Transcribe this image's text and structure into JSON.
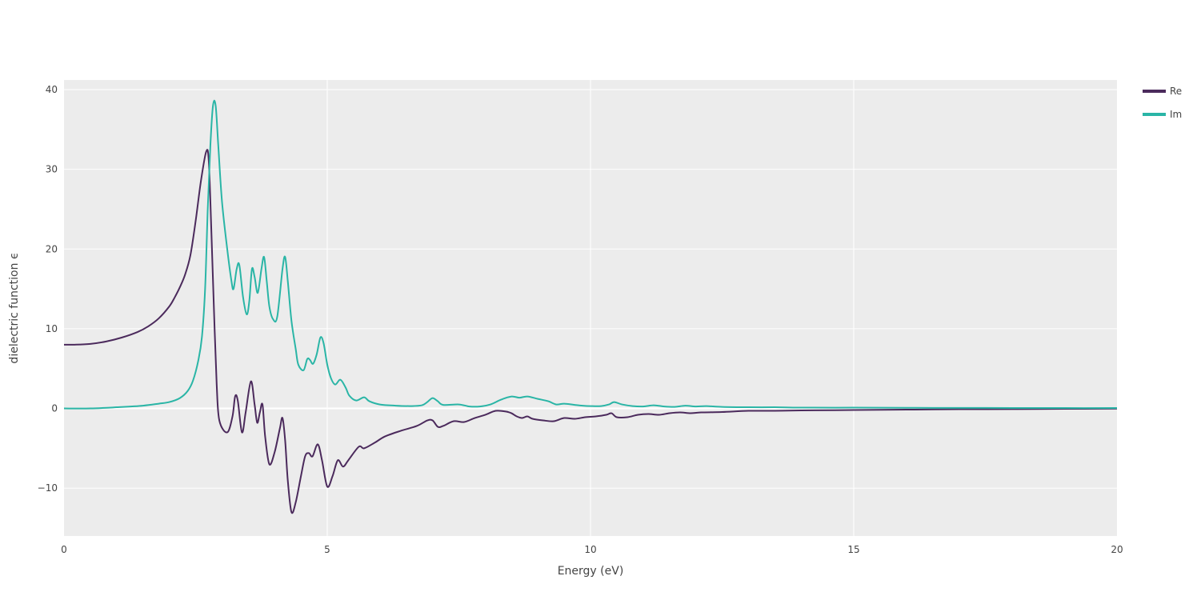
{
  "chart_data": {
    "type": "line",
    "xlabel": "Energy (eV)",
    "ylabel": "dielectric function ϵ",
    "xlim": [
      0,
      20
    ],
    "ylim": [
      -16,
      41.2
    ],
    "xticks": [
      0,
      5,
      10,
      15,
      20
    ],
    "yticks": [
      -10,
      0,
      10,
      20,
      30,
      40
    ],
    "xtick_labels": [
      "0",
      "5",
      "10",
      "15",
      "20"
    ],
    "ytick_labels": [
      "−10",
      "0",
      "10",
      "20",
      "30",
      "40"
    ],
    "grid": true,
    "legend_position": "top-right",
    "colors": {
      "plot_bg": "#ececec",
      "grid": "#ffffff"
    },
    "series": [
      {
        "name": "Re",
        "color": "#4b2a5c",
        "points": [
          [
            0,
            8.0
          ],
          [
            0.2,
            8.0
          ],
          [
            0.5,
            8.1
          ],
          [
            0.8,
            8.4
          ],
          [
            1.1,
            8.9
          ],
          [
            1.4,
            9.6
          ],
          [
            1.6,
            10.3
          ],
          [
            1.8,
            11.3
          ],
          [
            2.0,
            12.8
          ],
          [
            2.1,
            13.9
          ],
          [
            2.2,
            15.2
          ],
          [
            2.3,
            16.8
          ],
          [
            2.4,
            19.2
          ],
          [
            2.5,
            23.5
          ],
          [
            2.6,
            28.5
          ],
          [
            2.7,
            32.2
          ],
          [
            2.75,
            31.0
          ],
          [
            2.8,
            22.0
          ],
          [
            2.85,
            12.0
          ],
          [
            2.9,
            3.0
          ],
          [
            2.95,
            -1.5
          ],
          [
            3.1,
            -3.0
          ],
          [
            3.2,
            -1.0
          ],
          [
            3.25,
            1.5
          ],
          [
            3.3,
            1.0
          ],
          [
            3.38,
            -3.0
          ],
          [
            3.45,
            -0.5
          ],
          [
            3.55,
            3.4
          ],
          [
            3.62,
            0.5
          ],
          [
            3.67,
            -1.8
          ],
          [
            3.72,
            -0.5
          ],
          [
            3.77,
            0.5
          ],
          [
            3.82,
            -3.5
          ],
          [
            3.9,
            -7.0
          ],
          [
            4.0,
            -5.5
          ],
          [
            4.1,
            -2.5
          ],
          [
            4.15,
            -1.2
          ],
          [
            4.2,
            -4.0
          ],
          [
            4.25,
            -9.0
          ],
          [
            4.32,
            -13.0
          ],
          [
            4.4,
            -11.8
          ],
          [
            4.5,
            -8.5
          ],
          [
            4.58,
            -6.0
          ],
          [
            4.65,
            -5.6
          ],
          [
            4.72,
            -6.0
          ],
          [
            4.82,
            -4.5
          ],
          [
            4.9,
            -6.5
          ],
          [
            5.0,
            -9.8
          ],
          [
            5.1,
            -8.5
          ],
          [
            5.2,
            -6.5
          ],
          [
            5.3,
            -7.3
          ],
          [
            5.4,
            -6.5
          ],
          [
            5.6,
            -4.8
          ],
          [
            5.7,
            -5.0
          ],
          [
            5.9,
            -4.3
          ],
          [
            6.1,
            -3.5
          ],
          [
            6.4,
            -2.8
          ],
          [
            6.7,
            -2.2
          ],
          [
            6.9,
            -1.5
          ],
          [
            7.0,
            -1.5
          ],
          [
            7.1,
            -2.3
          ],
          [
            7.2,
            -2.2
          ],
          [
            7.4,
            -1.6
          ],
          [
            7.6,
            -1.7
          ],
          [
            7.8,
            -1.2
          ],
          [
            8.0,
            -0.8
          ],
          [
            8.2,
            -0.3
          ],
          [
            8.4,
            -0.4
          ],
          [
            8.5,
            -0.6
          ],
          [
            8.6,
            -1.0
          ],
          [
            8.7,
            -1.2
          ],
          [
            8.8,
            -1.0
          ],
          [
            8.9,
            -1.3
          ],
          [
            9.1,
            -1.5
          ],
          [
            9.3,
            -1.6
          ],
          [
            9.5,
            -1.2
          ],
          [
            9.7,
            -1.3
          ],
          [
            9.9,
            -1.1
          ],
          [
            10.1,
            -1.0
          ],
          [
            10.3,
            -0.8
          ],
          [
            10.4,
            -0.6
          ],
          [
            10.5,
            -1.1
          ],
          [
            10.7,
            -1.1
          ],
          [
            10.9,
            -0.8
          ],
          [
            11.1,
            -0.7
          ],
          [
            11.3,
            -0.8
          ],
          [
            11.5,
            -0.6
          ],
          [
            11.7,
            -0.5
          ],
          [
            11.9,
            -0.6
          ],
          [
            12.1,
            -0.5
          ],
          [
            12.5,
            -0.45
          ],
          [
            13.0,
            -0.3
          ],
          [
            13.5,
            -0.3
          ],
          [
            14,
            -0.25
          ],
          [
            15,
            -0.2
          ],
          [
            16,
            -0.15
          ],
          [
            17,
            -0.1
          ],
          [
            18,
            -0.08
          ],
          [
            19,
            -0.05
          ],
          [
            20,
            -0.02
          ]
        ]
      },
      {
        "name": "Im",
        "color": "#2ab5a6",
        "points": [
          [
            0,
            0.0
          ],
          [
            0.5,
            0.0
          ],
          [
            1.0,
            0.15
          ],
          [
            1.5,
            0.35
          ],
          [
            1.8,
            0.6
          ],
          [
            2.0,
            0.8
          ],
          [
            2.2,
            1.3
          ],
          [
            2.35,
            2.2
          ],
          [
            2.45,
            3.5
          ],
          [
            2.55,
            6.0
          ],
          [
            2.62,
            9.0
          ],
          [
            2.68,
            15.0
          ],
          [
            2.73,
            25.0
          ],
          [
            2.78,
            33.0
          ],
          [
            2.83,
            38.0
          ],
          [
            2.88,
            38.0
          ],
          [
            2.93,
            33.0
          ],
          [
            3.0,
            26.0
          ],
          [
            3.1,
            20.0
          ],
          [
            3.18,
            16.0
          ],
          [
            3.22,
            15.0
          ],
          [
            3.28,
            17.5
          ],
          [
            3.33,
            18.0
          ],
          [
            3.4,
            14.0
          ],
          [
            3.47,
            11.8
          ],
          [
            3.52,
            13.5
          ],
          [
            3.57,
            17.5
          ],
          [
            3.62,
            16.5
          ],
          [
            3.68,
            14.5
          ],
          [
            3.75,
            17.5
          ],
          [
            3.8,
            19.0
          ],
          [
            3.85,
            16.0
          ],
          [
            3.9,
            12.8
          ],
          [
            3.97,
            11.2
          ],
          [
            4.05,
            11.5
          ],
          [
            4.15,
            17.5
          ],
          [
            4.2,
            19.0
          ],
          [
            4.25,
            16.0
          ],
          [
            4.32,
            11.0
          ],
          [
            4.4,
            7.5
          ],
          [
            4.45,
            5.5
          ],
          [
            4.55,
            4.8
          ],
          [
            4.62,
            6.2
          ],
          [
            4.67,
            6.1
          ],
          [
            4.73,
            5.6
          ],
          [
            4.8,
            6.8
          ],
          [
            4.87,
            8.9
          ],
          [
            4.93,
            8.2
          ],
          [
            5.0,
            5.5
          ],
          [
            5.07,
            3.8
          ],
          [
            5.15,
            3.0
          ],
          [
            5.25,
            3.6
          ],
          [
            5.35,
            2.6
          ],
          [
            5.42,
            1.6
          ],
          [
            5.55,
            1.0
          ],
          [
            5.7,
            1.4
          ],
          [
            5.8,
            0.9
          ],
          [
            6.0,
            0.5
          ],
          [
            6.3,
            0.35
          ],
          [
            6.6,
            0.3
          ],
          [
            6.8,
            0.4
          ],
          [
            6.9,
            0.8
          ],
          [
            7.0,
            1.3
          ],
          [
            7.1,
            0.9
          ],
          [
            7.2,
            0.45
          ],
          [
            7.5,
            0.5
          ],
          [
            7.7,
            0.25
          ],
          [
            7.9,
            0.25
          ],
          [
            8.1,
            0.5
          ],
          [
            8.3,
            1.1
          ],
          [
            8.5,
            1.5
          ],
          [
            8.65,
            1.35
          ],
          [
            8.8,
            1.5
          ],
          [
            9.0,
            1.2
          ],
          [
            9.2,
            0.9
          ],
          [
            9.35,
            0.5
          ],
          [
            9.5,
            0.6
          ],
          [
            9.7,
            0.45
          ],
          [
            9.85,
            0.35
          ],
          [
            10.0,
            0.3
          ],
          [
            10.2,
            0.3
          ],
          [
            10.35,
            0.5
          ],
          [
            10.45,
            0.8
          ],
          [
            10.6,
            0.5
          ],
          [
            10.8,
            0.3
          ],
          [
            11.0,
            0.25
          ],
          [
            11.2,
            0.4
          ],
          [
            11.4,
            0.25
          ],
          [
            11.6,
            0.2
          ],
          [
            11.8,
            0.35
          ],
          [
            12.0,
            0.25
          ],
          [
            12.2,
            0.3
          ],
          [
            12.5,
            0.2
          ],
          [
            13.0,
            0.15
          ],
          [
            13.5,
            0.15
          ],
          [
            14,
            0.1
          ],
          [
            15,
            0.1
          ],
          [
            16,
            0.08
          ],
          [
            17,
            0.07
          ],
          [
            18,
            0.06
          ],
          [
            19,
            0.05
          ],
          [
            20,
            0.05
          ]
        ]
      }
    ]
  }
}
